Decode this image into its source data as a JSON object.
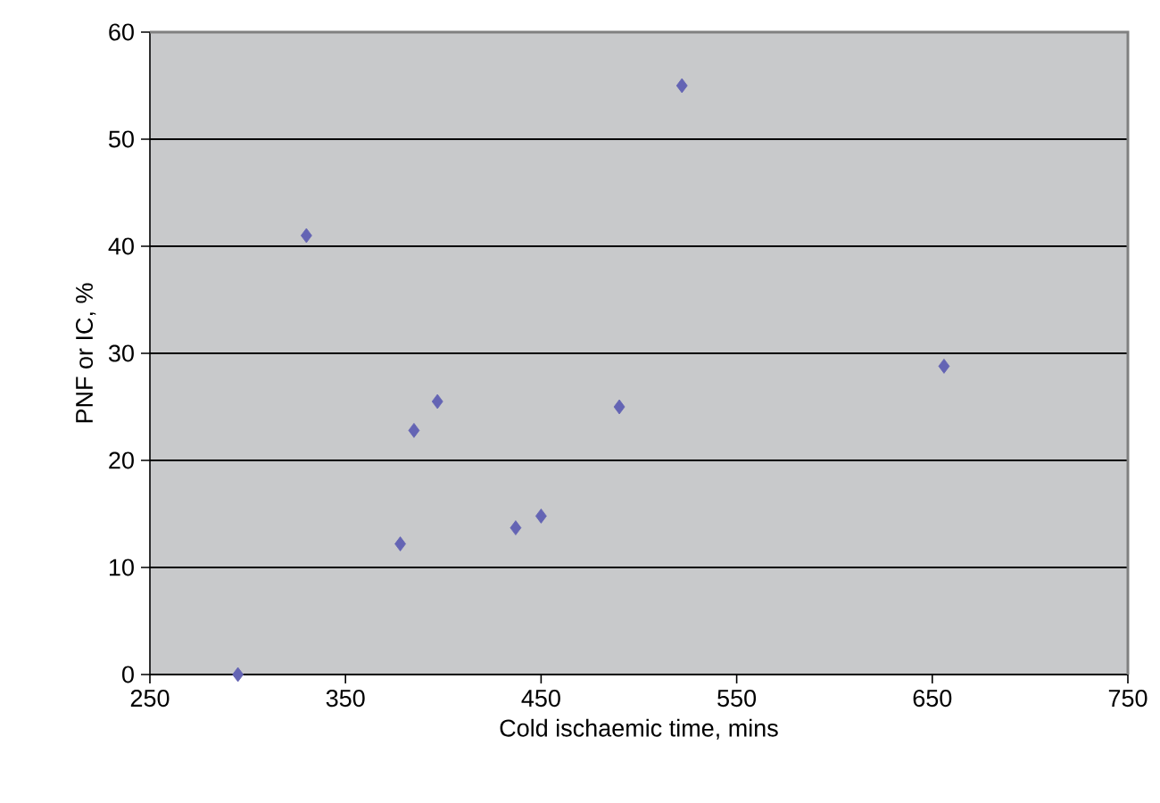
{
  "chart_data": {
    "type": "scatter",
    "xlabel": "Cold ischaemic time, mins",
    "ylabel": "PNF or IC, %",
    "x": [
      295,
      330,
      378,
      385,
      397,
      437,
      450,
      490,
      522,
      656
    ],
    "values": [
      0,
      41,
      12.2,
      22.8,
      25.5,
      13.7,
      14.8,
      25,
      55,
      28.8
    ],
    "color": "#6464b4",
    "marker": "diamond",
    "grid": "y",
    "xlim": [
      250,
      750
    ],
    "xticks": [
      250,
      350,
      450,
      550,
      650,
      750
    ],
    "ylim": [
      0,
      60
    ],
    "yticks": [
      0,
      10,
      20,
      30,
      40,
      50,
      60
    ]
  }
}
